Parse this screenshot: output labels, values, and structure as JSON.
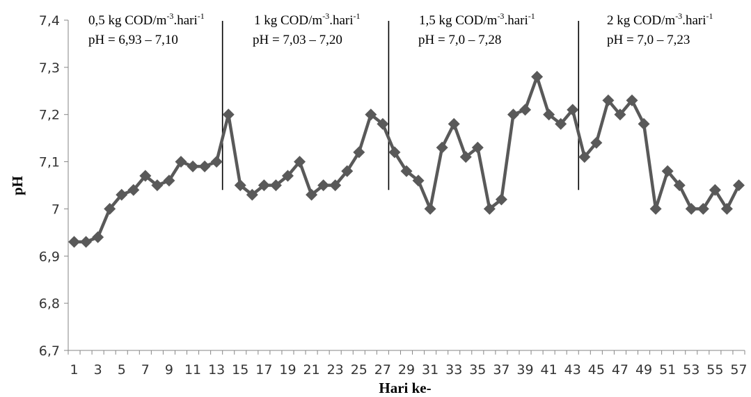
{
  "chart_data": {
    "type": "line",
    "xlabel": "Hari ke-",
    "ylabel": "pH",
    "ylim": [
      6.7,
      7.4
    ],
    "yticks": [
      "6,7",
      "6,8",
      "6,9",
      "7",
      "7,1",
      "7,2",
      "7,3",
      "7,4"
    ],
    "xlim": [
      1,
      57
    ],
    "xticks": [
      "1",
      "3",
      "5",
      "7",
      "9",
      "11",
      "13",
      "15",
      "17",
      "19",
      "21",
      "23",
      "25",
      "27",
      "29",
      "31",
      "33",
      "35",
      "37",
      "39",
      "41",
      "43",
      "45",
      "47",
      "49",
      "51",
      "53",
      "55",
      "57"
    ],
    "grid": false,
    "legend": "none",
    "series": [
      {
        "color": "#595959",
        "marker": "diamond",
        "x": [
          1,
          2,
          3,
          4,
          5,
          6,
          7,
          8,
          9,
          10,
          11,
          12,
          13,
          14,
          15,
          16,
          17,
          18,
          19,
          20,
          21,
          22,
          23,
          24,
          25,
          26,
          27,
          28,
          29,
          30,
          31,
          32,
          33,
          34,
          35,
          36,
          37,
          38,
          39,
          40,
          41,
          42,
          43,
          44,
          45,
          46,
          47,
          48,
          49,
          50,
          51,
          52,
          53,
          54,
          55,
          56,
          57
        ],
        "values": [
          6.93,
          6.93,
          6.94,
          7.0,
          7.03,
          7.04,
          7.07,
          7.05,
          7.06,
          7.1,
          7.09,
          7.09,
          7.1,
          7.2,
          7.05,
          7.03,
          7.05,
          7.05,
          7.07,
          7.1,
          7.03,
          7.05,
          7.05,
          7.08,
          7.12,
          7.2,
          7.18,
          7.12,
          7.08,
          7.06,
          7.0,
          7.13,
          7.18,
          7.11,
          7.13,
          7.0,
          7.02,
          7.2,
          7.21,
          7.28,
          7.2,
          7.18,
          7.21,
          7.11,
          7.14,
          7.23,
          7.2,
          7.23,
          7.18,
          7.0,
          7.08,
          7.05,
          7.0,
          7.0,
          7.04,
          7.0,
          7.05
        ]
      }
    ],
    "dividers_x": [
      13.5,
      27.5,
      43.5
    ],
    "annotations": [
      {
        "load_value": "0,5",
        "load_unit": "kg COD/m",
        "exp1": "-3",
        "mid": ".hari",
        "exp2": "-1",
        "ph_range": "pH = 6,93 – 7,10"
      },
      {
        "load_value": "1",
        "load_unit": "kg COD/m",
        "exp1": "-3",
        "mid": ".hari",
        "exp2": "-1",
        "ph_range": "pH = 7,03 – 7,20"
      },
      {
        "load_value": "1,5",
        "load_unit": "kg COD/m",
        "exp1": "-3",
        "mid": ".hari",
        "exp2": "-1",
        "ph_range": "pH = 7,0 – 7,28"
      },
      {
        "load_value": "2",
        "load_unit": "kg COD/m",
        "exp1": "-3",
        "mid": ".hari",
        "exp2": "-1",
        "ph_range": "pH = 7,0 – 7,23"
      }
    ]
  }
}
